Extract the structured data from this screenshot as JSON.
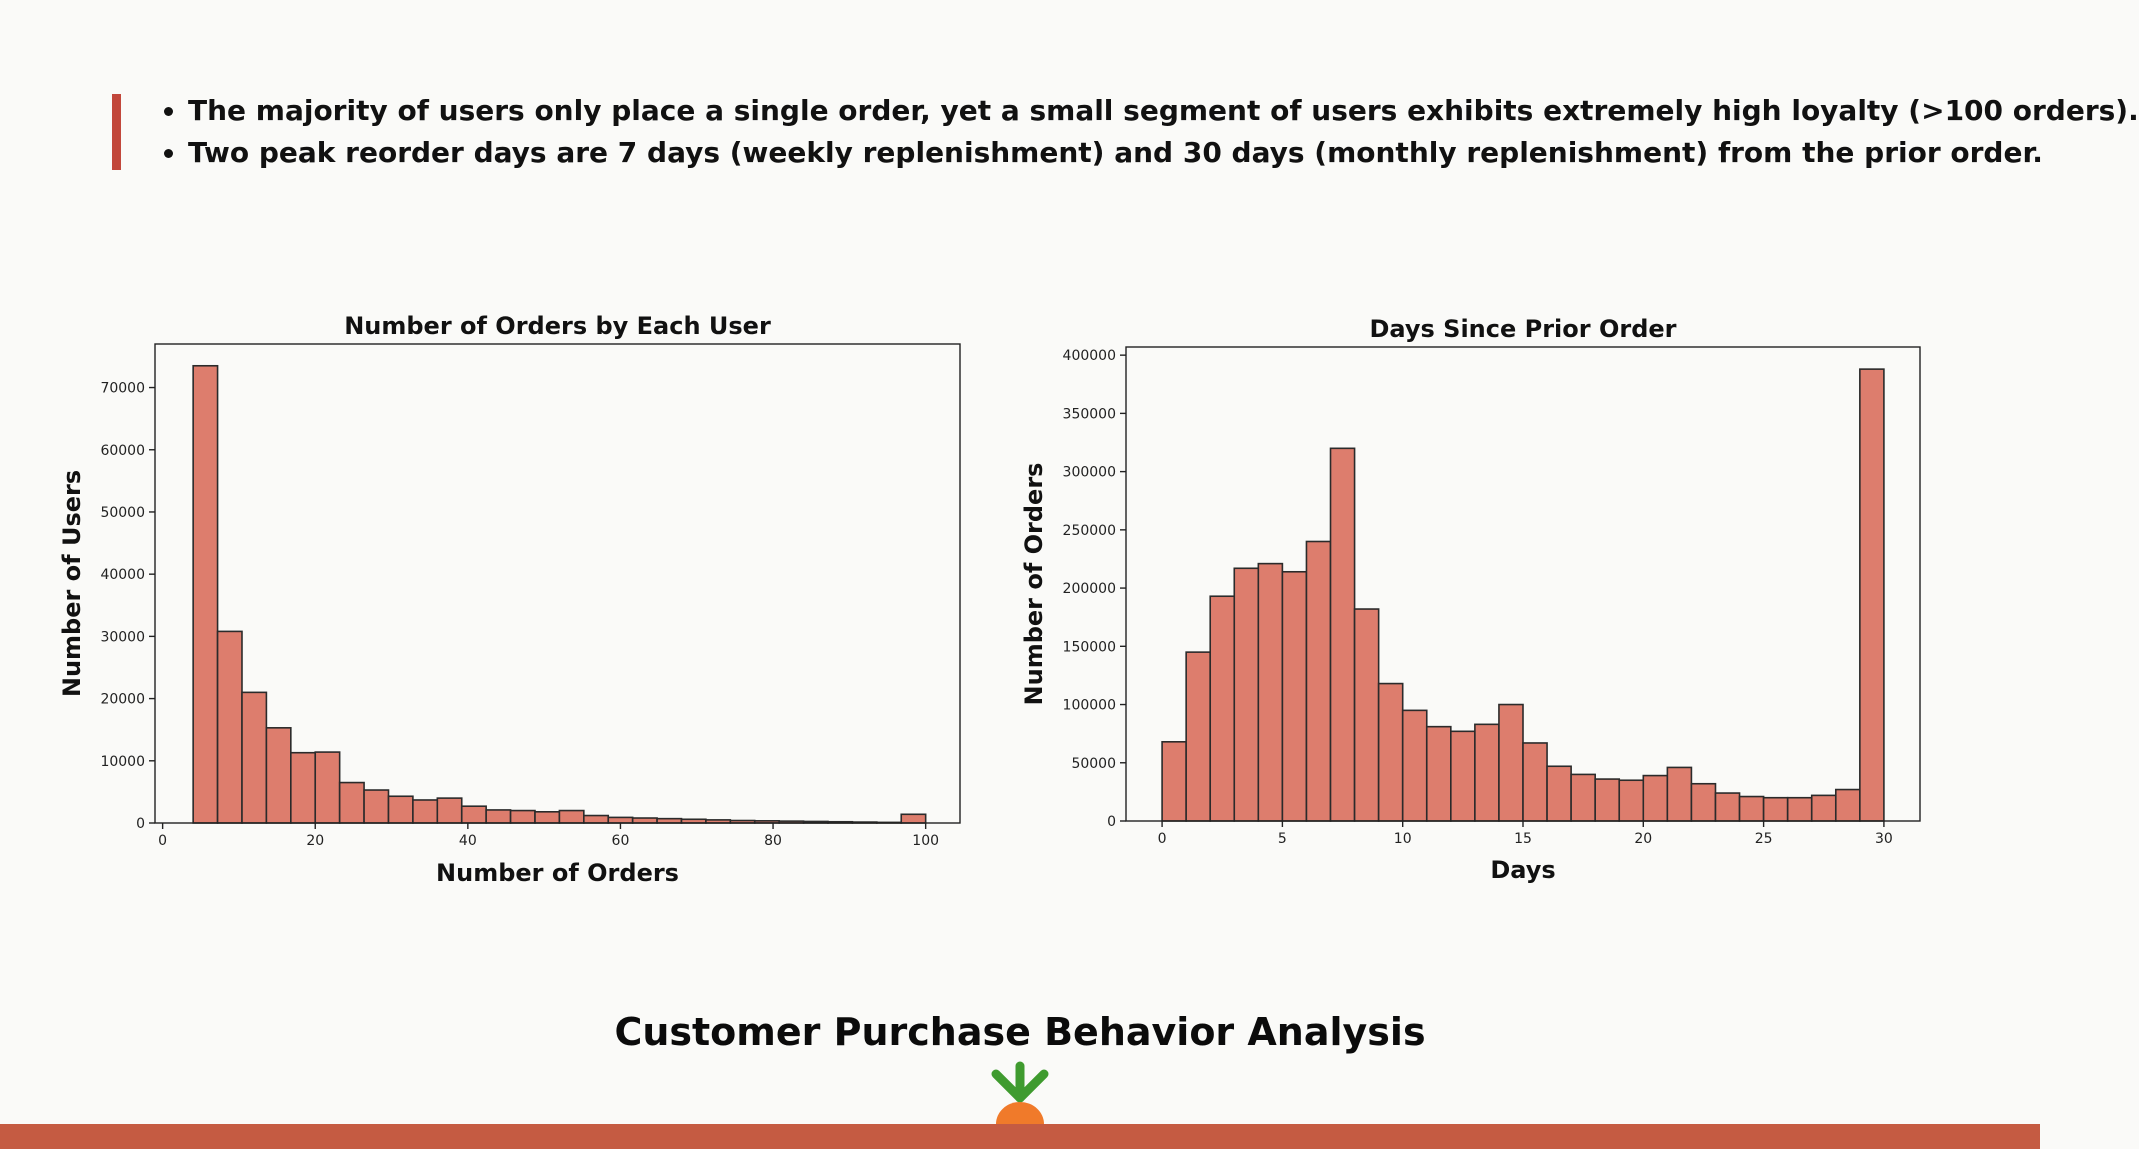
{
  "header": {
    "bullets": [
      "The majority of users only place a single order, yet a small segment of users exhibits extremely high loyalty (>100 orders).",
      "Two peak reorder days are 7 days (weekly replenishment) and 30 days (monthly replenishment) from the prior order."
    ]
  },
  "footer": {
    "title": "Customer Purchase Behavior Analysis"
  },
  "colors": {
    "accent": "#c2473b",
    "bar_fill": "#dd7d6d",
    "bar_edge": "#2b2b2b",
    "band": "#c55b42",
    "carrot": "#f07a2a",
    "leaf": "#3f9b2f"
  },
  "icons": {
    "logo": "carrot-logo-icon"
  },
  "chart_data": [
    {
      "type": "bar",
      "title": "Number of Orders by Each User",
      "xlabel": "Number of Orders",
      "ylabel": "Number of Users",
      "xlim": [
        -1,
        104.5
      ],
      "ylim": [
        0,
        77000
      ],
      "xticks": [
        0,
        20,
        40,
        60,
        80,
        100
      ],
      "yticks": [
        0,
        10000,
        20000,
        30000,
        40000,
        50000,
        60000,
        70000
      ],
      "bin_start": 4,
      "bin_width": 3.2,
      "values": [
        73500,
        30800,
        21000,
        15300,
        11300,
        11400,
        6500,
        5300,
        4300,
        3700,
        4000,
        2700,
        2100,
        2000,
        1800,
        2000,
        1200,
        900,
        800,
        700,
        600,
        500,
        400,
        350,
        300,
        250,
        200,
        150,
        100,
        1400
      ],
      "grid": false
    },
    {
      "type": "bar",
      "title": "Days Since Prior Order",
      "xlabel": "Days",
      "ylabel": "Number of Orders",
      "xlim": [
        -1.5,
        31.5
      ],
      "ylim": [
        0,
        407000
      ],
      "xticks": [
        0,
        5,
        10,
        15,
        20,
        25,
        30
      ],
      "yticks": [
        0,
        50000,
        100000,
        150000,
        200000,
        250000,
        300000,
        350000,
        400000
      ],
      "bin_start": 0,
      "bin_width": 1,
      "values": [
        68000,
        145000,
        193000,
        217000,
        221000,
        214000,
        240000,
        320000,
        182000,
        118000,
        95000,
        81000,
        77000,
        83000,
        100000,
        67000,
        47000,
        40000,
        36000,
        35000,
        39000,
        46000,
        32000,
        24000,
        21000,
        20000,
        20000,
        22000,
        27000,
        388000
      ],
      "grid": false
    }
  ]
}
